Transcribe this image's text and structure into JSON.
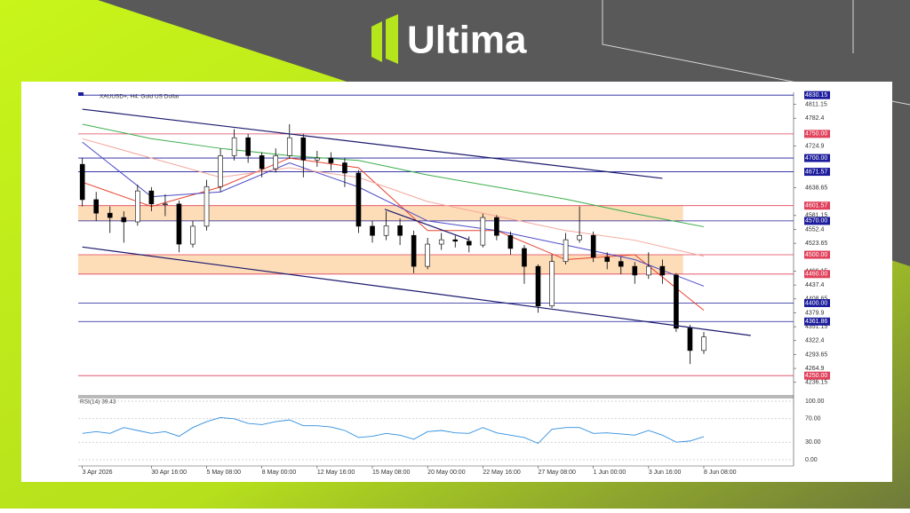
{
  "brand": "Ultima",
  "chart_data": {
    "type": "candlestick",
    "title": "XAUUSD+, H4:  Gold US Dollar",
    "x": [
      0,
      1,
      2,
      3,
      4,
      5,
      6,
      7,
      8,
      9,
      10,
      11,
      12,
      13,
      14,
      15,
      16,
      17,
      18,
      19,
      20,
      21,
      22,
      23,
      24,
      25,
      26,
      27,
      28,
      29,
      30,
      31,
      32,
      33,
      34,
      35,
      36,
      37,
      38,
      39,
      40,
      41,
      42,
      43,
      44,
      45
    ],
    "open": [
      4687,
      4614,
      4586,
      4577,
      4568,
      4632,
      4605,
      4605,
      4522,
      4559,
      4641,
      4705,
      4742,
      4705,
      4678,
      4705,
      4742,
      4696,
      4700,
      4690,
      4669,
      4559,
      4540,
      4560,
      4540,
      4476,
      4522,
      4531,
      4528,
      4520,
      4577,
      4540,
      4513,
      4476,
      4394,
      4486,
      4531,
      4540,
      4495,
      4486,
      4476,
      4458,
      4476,
      4458,
      4348,
      4302
    ],
    "high": [
      4700,
      4630,
      4600,
      4590,
      4645,
      4640,
      4625,
      4612,
      4570,
      4655,
      4720,
      4760,
      4750,
      4712,
      4720,
      4770,
      4750,
      4715,
      4712,
      4700,
      4675,
      4570,
      4590,
      4575,
      4550,
      4535,
      4545,
      4540,
      4538,
      4585,
      4582,
      4548,
      4520,
      4480,
      4500,
      4545,
      4600,
      4548,
      4505,
      4495,
      4485,
      4505,
      4490,
      4462,
      4355,
      4340
    ],
    "low": [
      4600,
      4570,
      4545,
      4525,
      4560,
      4590,
      4580,
      4505,
      4515,
      4550,
      4630,
      4695,
      4690,
      4660,
      4670,
      4698,
      4660,
      4682,
      4675,
      4640,
      4545,
      4525,
      4530,
      4520,
      4462,
      4470,
      4510,
      4515,
      4505,
      4515,
      4530,
      4500,
      4440,
      4380,
      4390,
      4480,
      4525,
      4485,
      4470,
      4460,
      4440,
      4450,
      4440,
      4340,
      4274,
      4295
    ],
    "close": [
      4614,
      4586,
      4577,
      4568,
      4632,
      4605,
      4605,
      4522,
      4559,
      4641,
      4705,
      4742,
      4705,
      4678,
      4705,
      4742,
      4696,
      4700,
      4690,
      4669,
      4559,
      4540,
      4560,
      4540,
      4476,
      4522,
      4531,
      4528,
      4520,
      4577,
      4540,
      4513,
      4476,
      4394,
      4486,
      4531,
      4540,
      4495,
      4486,
      4476,
      4458,
      4476,
      4458,
      4348,
      4302,
      4330
    ],
    "xlim": [
      -0.3,
      51.5
    ],
    "xticks": [
      {
        "value": 0,
        "label": "3 Apr 2026"
      },
      {
        "value": 5,
        "label": "30 Apr 16:00"
      },
      {
        "value": 9,
        "label": "5 May 08:00"
      },
      {
        "value": 13,
        "label": "8 May 00:00"
      },
      {
        "value": 17,
        "label": "12 May 16:00"
      },
      {
        "value": 21,
        "label": "15 May 08:00"
      },
      {
        "value": 25,
        "label": "20 May 00:00"
      },
      {
        "value": 29,
        "label": "22 May 16:00"
      },
      {
        "value": 33,
        "label": "27 May 08:00"
      },
      {
        "value": 37,
        "label": "1 Jun 00:00"
      },
      {
        "value": 41,
        "label": "3 Jun 16:00"
      },
      {
        "value": 45,
        "label": "8 Jun 08:00"
      }
    ],
    "ylim": [
      4210,
      4836
    ],
    "yticks": [
      4236.15,
      4264.9,
      4293.65,
      4322.4,
      4351.15,
      4379.9,
      4408.65,
      4437.4,
      4466.15,
      4523.65,
      4552.4,
      4581.15,
      4638.65,
      4724.9,
      4782.4,
      4811.15
    ],
    "levels": [
      {
        "value": 4830.15,
        "label": "4830.15",
        "color": "#1c1c9c"
      },
      {
        "value": 4750,
        "label": "4750.00",
        "color": "#e0405a"
      },
      {
        "value": 4700,
        "label": "4700.00",
        "color": "#1c1c9c"
      },
      {
        "value": 4671.57,
        "label": "4671.57",
        "color": "#1c1c9c"
      },
      {
        "value": 4601.57,
        "label": "4601.57",
        "color": "#e0405a"
      },
      {
        "value": 4570,
        "label": "4570.00",
        "color": "#1c1c9c"
      },
      {
        "value": 4500,
        "label": "4500.00",
        "color": "#e0405a"
      },
      {
        "value": 4460,
        "label": "4460.00",
        "color": "#e0405a"
      },
      {
        "value": 4400,
        "label": "4400.00",
        "color": "#1c1c9c"
      },
      {
        "value": 4361.86,
        "label": "4361.86",
        "color": "#1c1c9c"
      },
      {
        "value": 4250,
        "label": "4250.00",
        "color": "#e0405a"
      }
    ],
    "zones": [
      {
        "from": 4570,
        "to": 4601.57,
        "x_end": 43.5
      },
      {
        "from": 4460,
        "to": 4500,
        "x_end": 43.5
      }
    ],
    "zone_color": "#fddcb8",
    "moving_averages": [
      {
        "color": "#e8432e",
        "x": [
          0,
          5,
          10,
          15,
          20,
          25,
          30,
          35,
          40,
          45
        ],
        "values": [
          4650,
          4600,
          4640,
          4700,
          4680,
          4550,
          4550,
          4490,
          4500,
          4385
        ]
      },
      {
        "color": "#4a4ac8",
        "x": [
          0,
          5,
          10,
          15,
          20,
          25,
          30,
          35,
          40,
          45
        ],
        "values": [
          4733,
          4620,
          4630,
          4690,
          4640,
          4570,
          4550,
          4520,
          4490,
          4435
        ]
      },
      {
        "color": "#f4a79c",
        "x": [
          0,
          5,
          10,
          15,
          20,
          25,
          30,
          35,
          40,
          45
        ],
        "values": [
          4740,
          4700,
          4660,
          4680,
          4660,
          4610,
          4580,
          4550,
          4530,
          4497
        ]
      },
      {
        "color": "#3cae4c",
        "x": [
          0,
          5,
          10,
          15,
          20,
          25,
          30,
          35,
          40,
          45
        ],
        "values": [
          4770,
          4740,
          4720,
          4705,
          4695,
          4665,
          4640,
          4615,
          4585,
          4558
        ]
      }
    ],
    "trendlines": [
      {
        "x": [
          0,
          42
        ],
        "values": [
          4801,
          4658
        ]
      },
      {
        "x": [
          0,
          48.4
        ],
        "values": [
          4516,
          4333
        ]
      },
      {
        "x": [
          21.9,
          28
        ],
        "values": [
          4594,
          4531
        ]
      }
    ],
    "trend_color": "#1a1a6e",
    "candle_up": "#ffffff",
    "candle_down": "#000000",
    "rsi": {
      "title": "RSI(14) 39.43",
      "color": "#2f8ee0",
      "values": [
        45,
        48,
        45,
        55,
        50,
        45,
        48,
        40,
        55,
        65,
        72,
        70,
        62,
        60,
        65,
        68,
        58,
        58,
        56,
        50,
        38,
        40,
        45,
        42,
        35,
        48,
        50,
        46,
        45,
        55,
        46,
        42,
        38,
        28,
        52,
        55,
        55,
        45,
        46,
        44,
        42,
        50,
        42,
        30,
        32,
        39.43
      ],
      "ylim": [
        0,
        100
      ],
      "yticks": [
        {
          "value": 100,
          "label": "100.00"
        },
        {
          "value": 70,
          "label": "70.00"
        },
        {
          "value": 30,
          "label": "30.00"
        },
        {
          "value": 0,
          "label": "0.00"
        }
      ]
    }
  }
}
